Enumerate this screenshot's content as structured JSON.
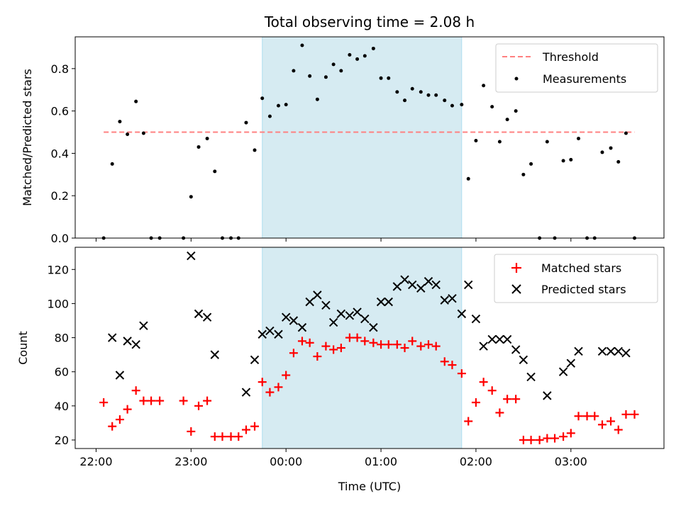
{
  "chart_data": [
    {
      "type": "scatter",
      "title": "Total observing time = 2.08 h",
      "xlabel": "",
      "ylabel": "Matched/Predicted stars",
      "ylim": [
        0,
        0.95
      ],
      "yticks": [
        0.0,
        0.2,
        0.4,
        0.6,
        0.8
      ],
      "ytick_labels": [
        "0.0",
        "0.2",
        "0.4",
        "0.6",
        "0.8"
      ],
      "xlim_hours": [
        21.78,
        27.98
      ],
      "xticks_hours": [
        22,
        23,
        24,
        25,
        26,
        27
      ],
      "shaded_region_hours": [
        23.75,
        25.85
      ],
      "shaded_color": "#add8e6",
      "legend_position": "upper right",
      "threshold": {
        "name": "Threshold",
        "value": 0.5,
        "x_range_hours": [
          22.08,
          27.67
        ],
        "color": "#ff8080",
        "style": "dashed"
      },
      "series": [
        {
          "name": "Measurements",
          "marker": "dot",
          "color": "#000000",
          "x_hours": [
            22.08,
            22.17,
            22.25,
            22.33,
            22.42,
            22.5,
            22.58,
            22.67,
            22.92,
            23.0,
            23.08,
            23.17,
            23.25,
            23.33,
            23.42,
            23.5,
            23.58,
            23.67,
            23.75,
            23.83,
            23.92,
            24.0,
            24.08,
            24.17,
            24.25,
            24.33,
            24.42,
            24.5,
            24.58,
            24.67,
            24.75,
            24.83,
            24.92,
            25.0,
            25.08,
            25.17,
            25.25,
            25.33,
            25.42,
            25.5,
            25.58,
            25.67,
            25.75,
            25.85,
            25.92,
            26.0,
            26.08,
            26.17,
            26.25,
            26.33,
            26.42,
            26.5,
            26.58,
            26.67,
            26.75,
            26.83,
            26.92,
            27.0,
            27.08,
            27.17,
            27.25,
            27.33,
            27.42,
            27.5,
            27.58,
            27.67
          ],
          "y": [
            0.0,
            0.35,
            0.55,
            0.49,
            0.645,
            0.495,
            0.0,
            0.0,
            0.0,
            0.195,
            0.43,
            0.47,
            0.315,
            0.0,
            0.0,
            0.0,
            0.545,
            0.415,
            0.66,
            0.575,
            0.625,
            0.63,
            0.79,
            0.91,
            0.765,
            0.655,
            0.76,
            0.82,
            0.79,
            0.865,
            0.845,
            0.86,
            0.895,
            0.755,
            0.755,
            0.69,
            0.65,
            0.705,
            0.69,
            0.675,
            0.675,
            0.65,
            0.625,
            0.63,
            0.28,
            0.46,
            0.72,
            0.62,
            0.455,
            0.56,
            0.6,
            0.3,
            0.35,
            0.0,
            0.455,
            0.0,
            0.365,
            0.37,
            0.47,
            0.0,
            0.0,
            0.405,
            0.425,
            0.36,
            0.495,
            0.0
          ]
        }
      ]
    },
    {
      "type": "scatter",
      "title": "",
      "xlabel": "Time (UTC)",
      "ylabel": "Count",
      "ylim": [
        15,
        133
      ],
      "yticks": [
        20,
        40,
        60,
        80,
        100,
        120
      ],
      "ytick_labels": [
        "20",
        "40",
        "60",
        "80",
        "100",
        "120"
      ],
      "xlim_hours": [
        21.78,
        27.98
      ],
      "xticks_hours": [
        22,
        23,
        24,
        25,
        26,
        27
      ],
      "xtick_labels": [
        "22:00",
        "23:00",
        "00:00",
        "01:00",
        "02:00",
        "03:00"
      ],
      "shaded_region_hours": [
        23.75,
        25.85
      ],
      "shaded_color": "#add8e6",
      "legend_position": "upper right",
      "series": [
        {
          "name": "Matched stars",
          "marker": "plus",
          "color": "#ff0000",
          "x_hours": [
            22.08,
            22.17,
            22.25,
            22.33,
            22.42,
            22.5,
            22.58,
            22.67,
            22.92,
            23.0,
            23.08,
            23.17,
            23.25,
            23.33,
            23.42,
            23.5,
            23.58,
            23.67,
            23.75,
            23.83,
            23.92,
            24.0,
            24.08,
            24.17,
            24.25,
            24.33,
            24.42,
            24.5,
            24.58,
            24.67,
            24.75,
            24.83,
            24.92,
            25.0,
            25.08,
            25.17,
            25.25,
            25.33,
            25.42,
            25.5,
            25.58,
            25.67,
            25.75,
            25.85,
            25.92,
            26.0,
            26.08,
            26.17,
            26.25,
            26.33,
            26.42,
            26.5,
            26.58,
            26.67,
            26.75,
            26.83,
            26.92,
            27.0,
            27.08,
            27.17,
            27.25,
            27.33,
            27.42,
            27.5,
            27.58,
            27.67
          ],
          "y": [
            42,
            28,
            32,
            38,
            49,
            43,
            43,
            43,
            43,
            25,
            40,
            43,
            22,
            22,
            22,
            22,
            26,
            28,
            54,
            48,
            51,
            58,
            71,
            78,
            77,
            69,
            75,
            73,
            74,
            80,
            80,
            78,
            77,
            76,
            76,
            76,
            74,
            78,
            75,
            76,
            75,
            66,
            64,
            59,
            31,
            42,
            54,
            49,
            36,
            44,
            44,
            20,
            20,
            20,
            21,
            21,
            22,
            24,
            34,
            34,
            34,
            29,
            31,
            26,
            35,
            35
          ]
        },
        {
          "name": "Predicted stars",
          "marker": "x",
          "color": "#000000",
          "x_hours": [
            22.17,
            22.25,
            22.33,
            22.42,
            22.5,
            23.0,
            23.08,
            23.17,
            23.25,
            23.58,
            23.67,
            23.75,
            23.83,
            23.92,
            24.0,
            24.08,
            24.17,
            24.25,
            24.33,
            24.42,
            24.5,
            24.58,
            24.67,
            24.75,
            24.83,
            24.92,
            25.0,
            25.08,
            25.17,
            25.25,
            25.33,
            25.42,
            25.5,
            25.58,
            25.67,
            25.75,
            25.85,
            25.92,
            26.0,
            26.08,
            26.17,
            26.25,
            26.33,
            26.42,
            26.5,
            26.58,
            26.75,
            26.92,
            27.0,
            27.08,
            27.33,
            27.42,
            27.5,
            27.58
          ],
          "y": [
            80,
            58,
            78,
            76,
            87,
            128,
            94,
            92,
            70,
            48,
            67,
            82,
            84,
            82,
            92,
            90,
            86,
            101,
            105,
            99,
            89,
            94,
            93,
            95,
            91,
            86,
            101,
            101,
            110,
            114,
            111,
            109,
            113,
            111,
            102,
            103,
            94,
            111,
            91,
            75,
            79,
            79,
            79,
            73,
            67,
            57,
            46,
            60,
            65,
            72,
            72,
            72,
            72,
            71
          ]
        }
      ]
    }
  ]
}
